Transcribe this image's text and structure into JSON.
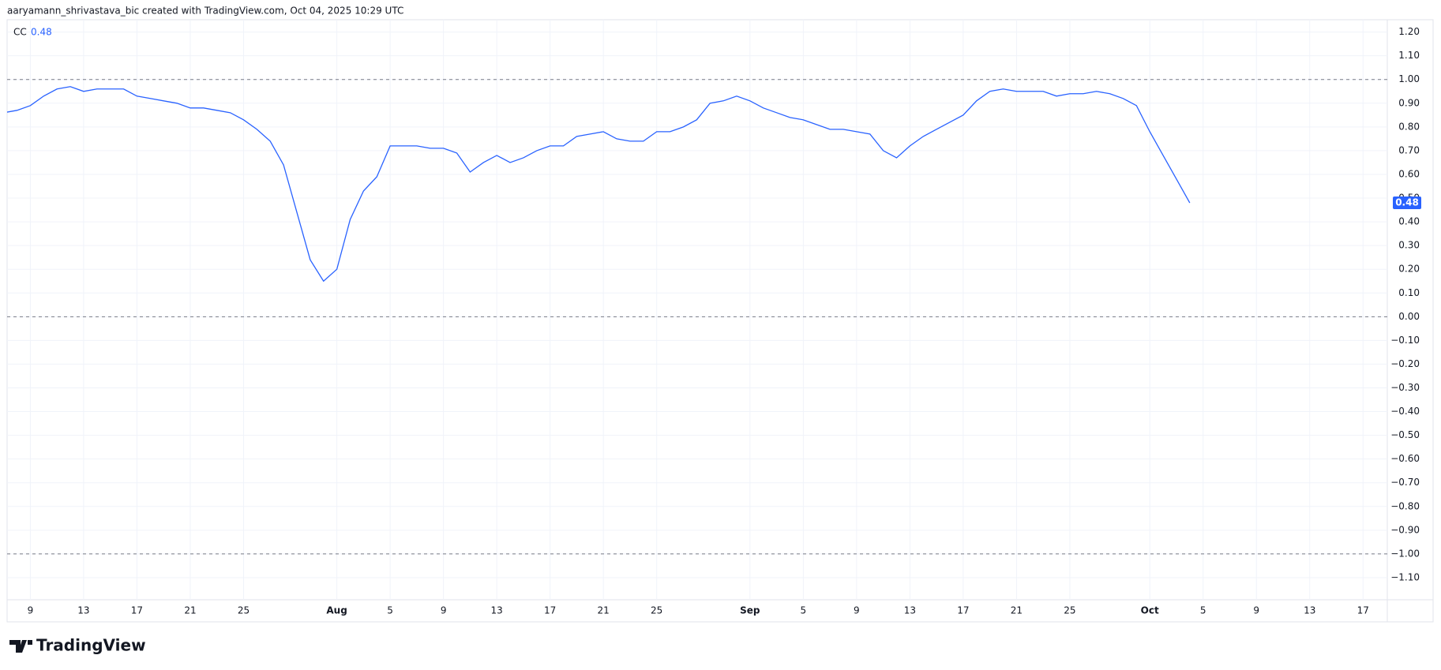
{
  "header": {
    "attribution": "aaryamann_shrivastava_bic created with TradingView.com, Oct 04, 2025 10:29 UTC"
  },
  "footer": {
    "brand": "TradingView"
  },
  "chart_data": {
    "type": "line",
    "x": [
      "07-07",
      "07-08",
      "07-09",
      "07-10",
      "07-11",
      "07-12",
      "07-13",
      "07-14",
      "07-15",
      "07-16",
      "07-17",
      "07-18",
      "07-19",
      "07-20",
      "07-21",
      "07-22",
      "07-23",
      "07-24",
      "07-25",
      "07-26",
      "07-27",
      "07-28",
      "07-29",
      "07-30",
      "07-31",
      "08-01",
      "08-02",
      "08-03",
      "08-04",
      "08-05",
      "08-06",
      "08-07",
      "08-08",
      "08-09",
      "08-10",
      "08-11",
      "08-12",
      "08-13",
      "08-14",
      "08-15",
      "08-16",
      "08-17",
      "08-18",
      "08-19",
      "08-20",
      "08-21",
      "08-22",
      "08-23",
      "08-24",
      "08-25",
      "08-26",
      "08-27",
      "08-28",
      "08-29",
      "08-30",
      "08-31",
      "09-01",
      "09-02",
      "09-03",
      "09-04",
      "09-05",
      "09-06",
      "09-07",
      "09-08",
      "09-09",
      "09-10",
      "09-11",
      "09-12",
      "09-13",
      "09-14",
      "09-15",
      "09-16",
      "09-17",
      "09-18",
      "09-19",
      "09-20",
      "09-21",
      "09-22",
      "09-23",
      "09-24",
      "09-25",
      "09-26",
      "09-27",
      "09-28",
      "09-29",
      "09-30",
      "10-01",
      "10-02",
      "10-03",
      "10-04"
    ],
    "series": [
      {
        "name": "CC",
        "color": "#2962ff",
        "values": [
          0.86,
          0.87,
          0.89,
          0.93,
          0.96,
          0.97,
          0.95,
          0.96,
          0.96,
          0.96,
          0.93,
          0.92,
          0.91,
          0.9,
          0.88,
          0.88,
          0.87,
          0.86,
          0.83,
          0.79,
          0.74,
          0.64,
          0.44,
          0.24,
          0.15,
          0.2,
          0.41,
          0.53,
          0.59,
          0.72,
          0.72,
          0.72,
          0.71,
          0.71,
          0.69,
          0.61,
          0.65,
          0.68,
          0.65,
          0.67,
          0.7,
          0.72,
          0.72,
          0.76,
          0.77,
          0.78,
          0.75,
          0.74,
          0.74,
          0.78,
          0.78,
          0.8,
          0.83,
          0.9,
          0.91,
          0.93,
          0.91,
          0.88,
          0.86,
          0.84,
          0.83,
          0.81,
          0.79,
          0.79,
          0.78,
          0.77,
          0.7,
          0.67,
          0.72,
          0.76,
          0.79,
          0.82,
          0.85,
          0.91,
          0.95,
          0.96,
          0.95,
          0.95,
          0.95,
          0.93,
          0.94,
          0.94,
          0.95,
          0.94,
          0.92,
          0.89,
          0.78,
          0.68,
          0.58,
          0.48
        ]
      }
    ],
    "xlim": [
      "07-07",
      "10-19"
    ],
    "xticks": [
      {
        "value": "07-09",
        "label": "9"
      },
      {
        "value": "07-13",
        "label": "13"
      },
      {
        "value": "07-17",
        "label": "17"
      },
      {
        "value": "07-21",
        "label": "21"
      },
      {
        "value": "07-25",
        "label": "25"
      },
      {
        "value": "08-01",
        "label": "Aug"
      },
      {
        "value": "08-05",
        "label": "5"
      },
      {
        "value": "08-09",
        "label": "9"
      },
      {
        "value": "08-13",
        "label": "13"
      },
      {
        "value": "08-17",
        "label": "17"
      },
      {
        "value": "08-21",
        "label": "21"
      },
      {
        "value": "08-25",
        "label": "25"
      },
      {
        "value": "09-01",
        "label": "Sep"
      },
      {
        "value": "09-05",
        "label": "5"
      },
      {
        "value": "09-09",
        "label": "9"
      },
      {
        "value": "09-13",
        "label": "13"
      },
      {
        "value": "09-17",
        "label": "17"
      },
      {
        "value": "09-21",
        "label": "21"
      },
      {
        "value": "09-25",
        "label": "25"
      },
      {
        "value": "10-01",
        "label": "Oct"
      },
      {
        "value": "10-05",
        "label": "5"
      },
      {
        "value": "10-09",
        "label": "9"
      },
      {
        "value": "10-13",
        "label": "13"
      },
      {
        "value": "10-17",
        "label": "17"
      }
    ],
    "ylim": [
      -1.19,
      1.25
    ],
    "yticks": [
      {
        "value": 1.2,
        "label": "1.20"
      },
      {
        "value": 1.1,
        "label": "1.10"
      },
      {
        "value": 1,
        "label": "1.00"
      },
      {
        "value": 0.9,
        "label": "0.90"
      },
      {
        "value": 0.8,
        "label": "0.80"
      },
      {
        "value": 0.7,
        "label": "0.70"
      },
      {
        "value": 0.6,
        "label": "0.60"
      },
      {
        "value": 0.5,
        "label": "0.50"
      },
      {
        "value": 0.4,
        "label": "0.40"
      },
      {
        "value": 0.3,
        "label": "0.30"
      },
      {
        "value": 0.2,
        "label": "0.20"
      },
      {
        "value": 0.1,
        "label": "0.10"
      },
      {
        "value": 0,
        "label": "0.00"
      },
      {
        "value": -0.1,
        "label": "−0.10"
      },
      {
        "value": -0.2,
        "label": "−0.20"
      },
      {
        "value": -0.3,
        "label": "−0.30"
      },
      {
        "value": -0.4,
        "label": "−0.40"
      },
      {
        "value": -0.5,
        "label": "−0.50"
      },
      {
        "value": -0.6,
        "label": "−0.60"
      },
      {
        "value": -0.7,
        "label": "−0.70"
      },
      {
        "value": -0.8,
        "label": "−0.80"
      },
      {
        "value": -0.9,
        "label": "−0.90"
      },
      {
        "value": -1,
        "label": "−1.00"
      },
      {
        "value": -1.1,
        "label": "−1.10"
      }
    ],
    "hlines": [
      1,
      0,
      -1
    ],
    "grid": true
  }
}
